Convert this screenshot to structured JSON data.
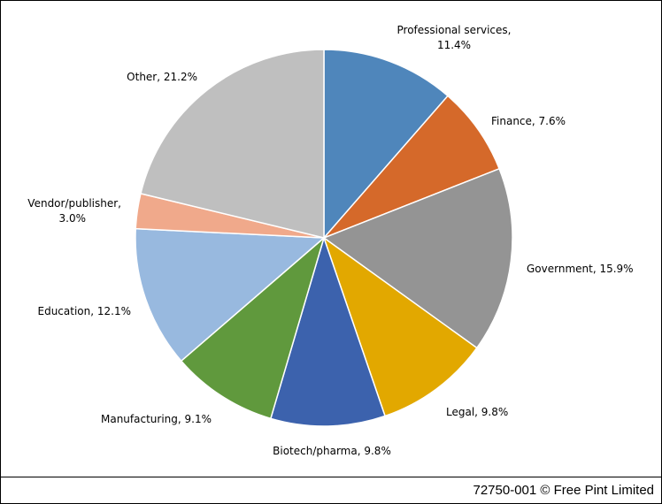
{
  "chart_data": {
    "type": "pie",
    "start_angle_deg": 0,
    "direction": "clockwise",
    "slices": [
      {
        "label": "Professional services",
        "value": 11.4,
        "display": "11.4%",
        "color": "#4f86bb"
      },
      {
        "label": "Finance",
        "value": 7.6,
        "display": "7.6%",
        "color": "#d5692a"
      },
      {
        "label": "Government",
        "value": 15.9,
        "display": "15.9%",
        "color": "#949494"
      },
      {
        "label": "Legal",
        "value": 9.8,
        "display": "9.8%",
        "color": "#e2a800"
      },
      {
        "label": "Biotech/pharma",
        "value": 9.8,
        "display": "9.8%",
        "color": "#3c62ad"
      },
      {
        "label": "Manufacturing",
        "value": 9.1,
        "display": "9.1%",
        "color": "#60993d"
      },
      {
        "label": "Education",
        "value": 12.1,
        "display": "12.1%",
        "color": "#98b9df"
      },
      {
        "label": "Vendor/publisher",
        "value": 3.0,
        "display": "3.0%",
        "color": "#f0a98b"
      },
      {
        "label": "Other",
        "value": 21.2,
        "display": "21.2%",
        "color": "#bfbfbf"
      }
    ],
    "labels": [
      {
        "lines": [
          "Professional services,",
          "11.4%"
        ]
      },
      {
        "lines": [
          "Finance, 7.6%"
        ]
      },
      {
        "lines": [
          "Government, 15.9%"
        ]
      },
      {
        "lines": [
          "Legal, 9.8%"
        ]
      },
      {
        "lines": [
          "Biotech/pharma, 9.8%"
        ]
      },
      {
        "lines": [
          "Manufacturing, 9.1%"
        ]
      },
      {
        "lines": [
          "Education, 12.1%"
        ]
      },
      {
        "lines": [
          "Vendor/publisher,",
          "3.0%"
        ]
      },
      {
        "lines": [
          "Other, 21.2%"
        ]
      }
    ]
  },
  "footer": {
    "credit": "72750-001 © Free Pint Limited"
  }
}
